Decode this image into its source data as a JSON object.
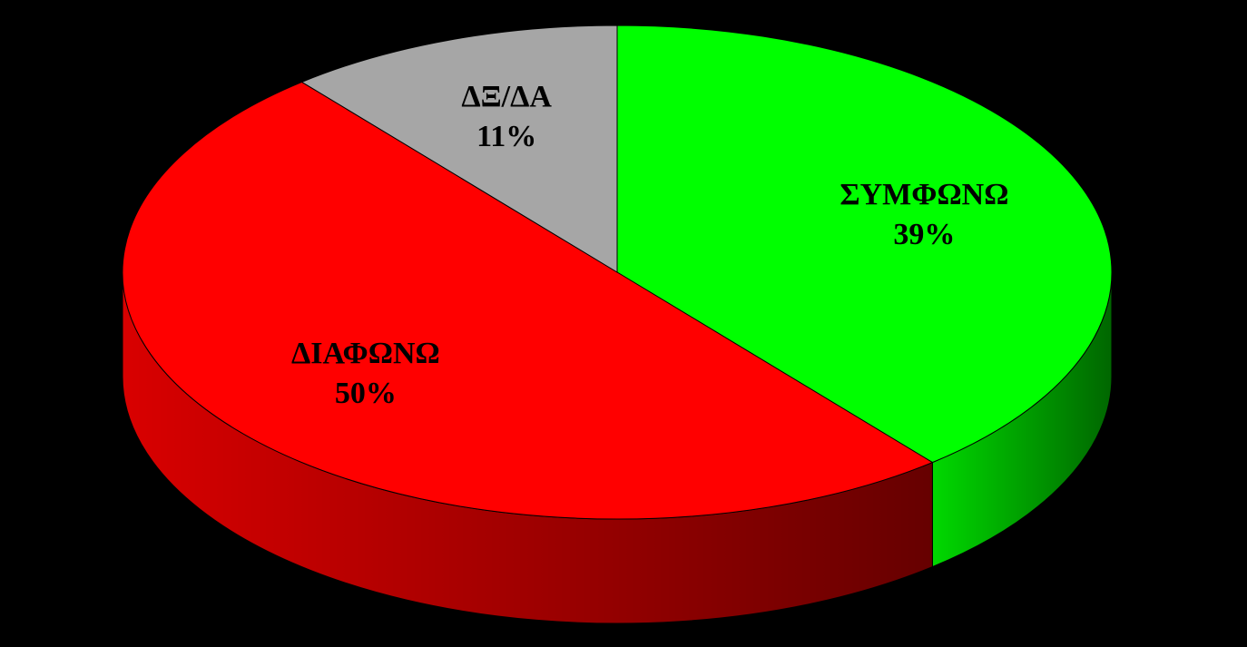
{
  "chart_data": {
    "type": "pie3d",
    "categories": [
      "ΣΥΜΦΩΝΩ",
      "ΔΙΑΦΩΝΩ",
      "ΔΞ/ΔΑ"
    ],
    "values": [
      39,
      50,
      11
    ],
    "value_labels": [
      "39%",
      "50%",
      "11%"
    ],
    "colors": [
      "#00ff00",
      "#ff0000",
      "#a6a6a6"
    ]
  }
}
